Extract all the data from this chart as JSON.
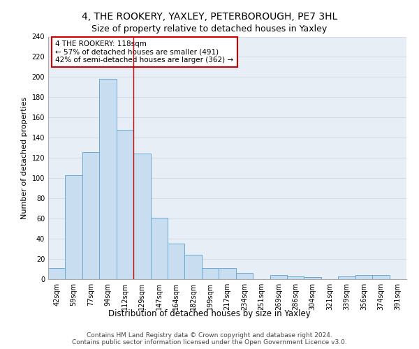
{
  "title1": "4, THE ROOKERY, YAXLEY, PETERBOROUGH, PE7 3HL",
  "title2": "Size of property relative to detached houses in Yaxley",
  "xlabel": "Distribution of detached houses by size in Yaxley",
  "ylabel": "Number of detached properties",
  "categories": [
    "42sqm",
    "59sqm",
    "77sqm",
    "94sqm",
    "112sqm",
    "129sqm",
    "147sqm",
    "164sqm",
    "182sqm",
    "199sqm",
    "217sqm",
    "234sqm",
    "251sqm",
    "269sqm",
    "286sqm",
    "304sqm",
    "321sqm",
    "339sqm",
    "356sqm",
    "374sqm",
    "391sqm"
  ],
  "values": [
    11,
    103,
    126,
    198,
    148,
    124,
    61,
    35,
    24,
    11,
    11,
    6,
    0,
    4,
    3,
    2,
    0,
    3,
    4,
    4,
    0
  ],
  "bar_color": "#c9ddf0",
  "bar_edge_color": "#6aaad4",
  "annotation_text": "4 THE ROOKERY: 118sqm\n← 57% of detached houses are smaller (491)\n42% of semi-detached houses are larger (362) →",
  "annotation_box_color": "#ffffff",
  "annotation_box_edge": "#cc0000",
  "footer_text": "Contains HM Land Registry data © Crown copyright and database right 2024.\nContains public sector information licensed under the Open Government Licence v3.0.",
  "ylim": [
    0,
    240
  ],
  "yticks": [
    0,
    20,
    40,
    60,
    80,
    100,
    120,
    140,
    160,
    180,
    200,
    220,
    240
  ],
  "grid_color": "#d0d8e4",
  "background_color": "#e8eef5",
  "title1_fontsize": 10,
  "title2_fontsize": 9,
  "xlabel_fontsize": 8.5,
  "ylabel_fontsize": 8,
  "tick_fontsize": 7,
  "annotation_fontsize": 7.5,
  "footer_fontsize": 6.5,
  "red_line_index": 4.5
}
